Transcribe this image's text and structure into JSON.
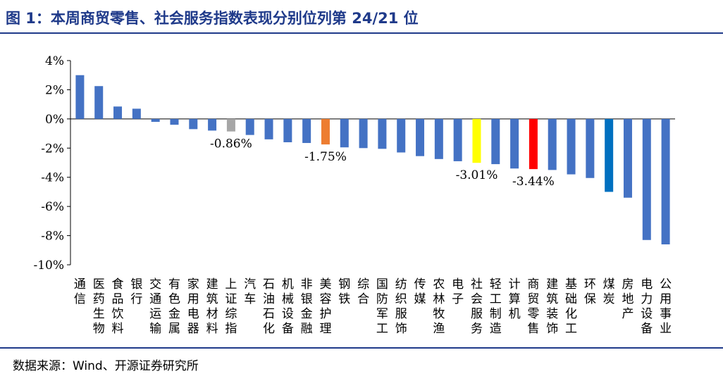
{
  "title": "图 1：本周商贸零售、社会服务指数表现分别位列第 24/21 位",
  "source": "数据来源：Wind、开源证券研究所",
  "colors": {
    "default": "#4472C4",
    "highlight_index": "#A6A6A6",
    "highlight_beauty": "#ED7D31",
    "highlight_social": "#FFFF00",
    "highlight_retail": "#FF0000",
    "highlight_coal": "#0070C0",
    "title": "#1F3A8A"
  },
  "chart_data": {
    "type": "bar",
    "title": "本周商贸零售、社会服务指数表现分别位列第 24/21 位",
    "xlabel": "",
    "ylabel": "",
    "ylim": [
      -10,
      4
    ],
    "yticks": [
      4,
      2,
      0,
      -2,
      -4,
      -6,
      -8,
      -10
    ],
    "ytick_labels": [
      "4%",
      "2%",
      "0%",
      "-2%",
      "-4%",
      "-6%",
      "-8%",
      "-10%"
    ],
    "grid": false,
    "categories": [
      "通信",
      "医药生物",
      "食品饮料",
      "银行",
      "交通运输",
      "有色金属",
      "家用电器",
      "建筑材料",
      "上证综指",
      "汽车",
      "石油石化",
      "机械设备",
      "非银金融",
      "美容护理",
      "钢铁",
      "综合",
      "国防军工",
      "纺织服饰",
      "传媒",
      "农林牧渔",
      "电子",
      "社会服务",
      "轻工制造",
      "计算机",
      "商贸零售",
      "建筑装饰",
      "基础化工",
      "环保",
      "煤炭",
      "房地产",
      "电力设备",
      "公用事业"
    ],
    "values": [
      3.0,
      2.25,
      0.85,
      0.7,
      -0.2,
      -0.4,
      -0.7,
      -0.8,
      -0.86,
      -1.1,
      -1.4,
      -1.6,
      -1.65,
      -1.75,
      -1.95,
      -2.0,
      -2.05,
      -2.3,
      -2.55,
      -2.75,
      -2.9,
      -3.01,
      -3.1,
      -3.4,
      -3.44,
      -3.5,
      -3.8,
      -4.05,
      -5.0,
      -5.4,
      -8.3,
      -8.6
    ],
    "highlights": {
      "上证综指": "highlight_index",
      "美容护理": "highlight_beauty",
      "社会服务": "highlight_social",
      "商贸零售": "highlight_retail",
      "煤炭": "highlight_coal"
    },
    "data_labels": [
      {
        "category": "上证综指",
        "text": "-0.86%"
      },
      {
        "category": "美容护理",
        "text": "-1.75%"
      },
      {
        "category": "社会服务",
        "text": "-3.01%"
      },
      {
        "category": "商贸零售",
        "text": "-3.44%"
      }
    ]
  }
}
